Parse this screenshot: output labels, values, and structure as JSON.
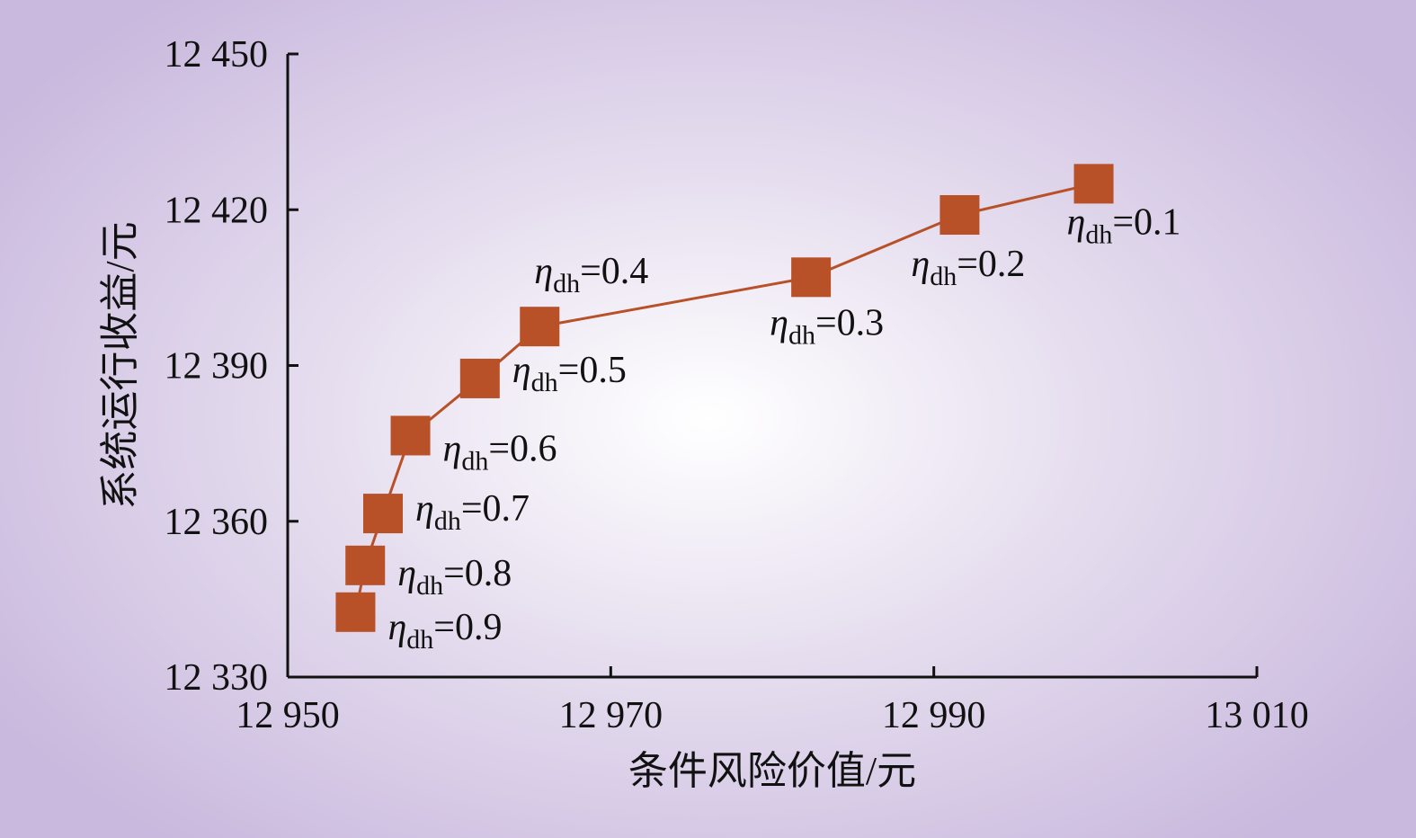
{
  "chart_data": {
    "type": "line",
    "xlabel": "条件风险价值/元",
    "ylabel": "系统运行收益/元",
    "xlim": [
      12950,
      13010
    ],
    "ylim": [
      12330,
      12450
    ],
    "x_ticks": [
      12950,
      12970,
      12990,
      13010
    ],
    "y_ticks": [
      12330,
      12360,
      12390,
      12420,
      12450
    ],
    "x_tick_labels": [
      "12 950",
      "12 970",
      "12 990",
      "13 010"
    ],
    "y_tick_labels": [
      "12 330",
      "12 360",
      "12 390",
      "12 420",
      "12 450"
    ],
    "colors": {
      "series": "#b85028",
      "axis": "#111111"
    },
    "marker": "square",
    "points": [
      {
        "x": 12954.2,
        "y": 12342.5,
        "symbol": "η",
        "subscript": "dh",
        "value": "=0.9"
      },
      {
        "x": 12954.8,
        "y": 12351.5,
        "symbol": "η",
        "subscript": "dh",
        "value": "=0.8"
      },
      {
        "x": 12955.9,
        "y": 12361.5,
        "symbol": "η",
        "subscript": "dh",
        "value": "=0.7"
      },
      {
        "x": 12957.6,
        "y": 12376.5,
        "symbol": "η",
        "subscript": "dh",
        "value": "=0.6"
      },
      {
        "x": 12961.9,
        "y": 12387.5,
        "symbol": "η",
        "subscript": "dh",
        "value": "=0.5"
      },
      {
        "x": 12965.6,
        "y": 12397.5,
        "symbol": "η",
        "subscript": "dh",
        "value": "=0.4"
      },
      {
        "x": 12982.4,
        "y": 12407.0,
        "symbol": "η",
        "subscript": "dh",
        "value": "=0.3"
      },
      {
        "x": 12991.6,
        "y": 12419.0,
        "symbol": "η",
        "subscript": "dh",
        "value": "=0.2"
      },
      {
        "x": 12999.9,
        "y": 12425.0,
        "symbol": "η",
        "subscript": "dh",
        "value": "=0.1"
      }
    ]
  }
}
